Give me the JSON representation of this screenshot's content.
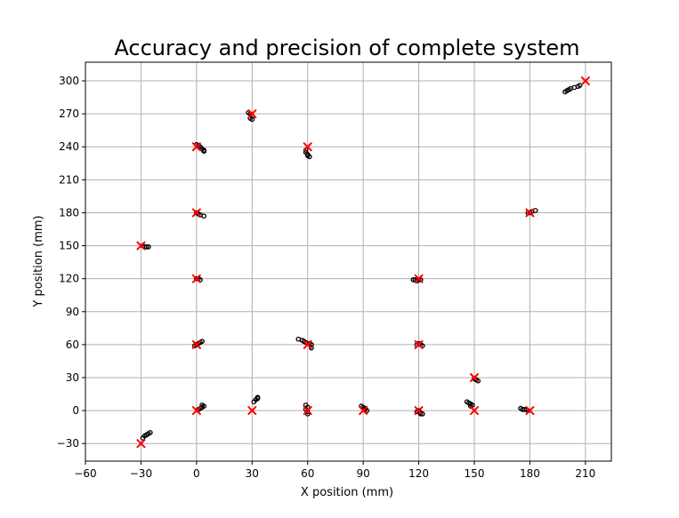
{
  "chart_data": {
    "type": "scatter",
    "title": "Accuracy and precision of complete system",
    "xlabel": "X position (mm)",
    "ylabel": "Y position (mm)",
    "xlim": [
      -60,
      224
    ],
    "ylim": [
      -46,
      317
    ],
    "xticks": [
      -60,
      -30,
      0,
      30,
      60,
      90,
      120,
      150,
      180,
      210
    ],
    "yticks": [
      -30,
      0,
      30,
      60,
      90,
      120,
      150,
      180,
      210,
      240,
      270,
      300
    ],
    "xtick_labels": [
      "−60",
      "−30",
      "0",
      "30",
      "60",
      "90",
      "120",
      "150",
      "180",
      "210"
    ],
    "ytick_labels": [
      "−30",
      "0",
      "30",
      "60",
      "90",
      "120",
      "150",
      "180",
      "210",
      "240",
      "270",
      "300"
    ],
    "grid": true,
    "colors": {
      "target": "#ff0000",
      "measured": "#000000",
      "grid": "#b0b0b0"
    },
    "series": [
      {
        "marker": "x",
        "values": [
          [
            -30,
            -30
          ],
          [
            0,
            0
          ],
          [
            30,
            0
          ],
          [
            60,
            0
          ],
          [
            90,
            0
          ],
          [
            120,
            0
          ],
          [
            150,
            0
          ],
          [
            180,
            0
          ],
          [
            0,
            60
          ],
          [
            60,
            60
          ],
          [
            120,
            60
          ],
          [
            150,
            30
          ],
          [
            0,
            120
          ],
          [
            120,
            120
          ],
          [
            -30,
            150
          ],
          [
            0,
            180
          ],
          [
            180,
            180
          ],
          [
            0,
            240
          ],
          [
            60,
            240
          ],
          [
            30,
            270
          ],
          [
            210,
            300
          ]
        ]
      },
      {
        "marker": "o",
        "values": [
          [
            -29,
            -25
          ],
          [
            -28,
            -23
          ],
          [
            -27,
            -22
          ],
          [
            -26,
            -21
          ],
          [
            -25,
            -20
          ],
          [
            1,
            1
          ],
          [
            2,
            2
          ],
          [
            3,
            3
          ],
          [
            4,
            4
          ],
          [
            3,
            5
          ],
          [
            31,
            8
          ],
          [
            32,
            10
          ],
          [
            33,
            11
          ],
          [
            33,
            12
          ],
          [
            59,
            5
          ],
          [
            60,
            3
          ],
          [
            59,
            1
          ],
          [
            60,
            -1
          ],
          [
            60,
            -3
          ],
          [
            89,
            4
          ],
          [
            90,
            3
          ],
          [
            91,
            2
          ],
          [
            91,
            1
          ],
          [
            92,
            0
          ],
          [
            119,
            -1
          ],
          [
            120,
            0
          ],
          [
            121,
            -2
          ],
          [
            121,
            -3
          ],
          [
            122,
            -3
          ],
          [
            146,
            8
          ],
          [
            147,
            7
          ],
          [
            148,
            6
          ],
          [
            149,
            5
          ],
          [
            148,
            4
          ],
          [
            175,
            2
          ],
          [
            176,
            1
          ],
          [
            177,
            1
          ],
          [
            178,
            1
          ],
          [
            179,
            0
          ],
          [
            -1,
            59
          ],
          [
            0,
            60
          ],
          [
            1,
            61
          ],
          [
            2,
            62
          ],
          [
            3,
            63
          ],
          [
            55,
            65
          ],
          [
            57,
            64
          ],
          [
            58,
            63
          ],
          [
            59,
            62
          ],
          [
            61,
            61
          ],
          [
            62,
            60
          ],
          [
            62,
            57
          ],
          [
            119,
            60
          ],
          [
            120,
            61
          ],
          [
            121,
            60
          ],
          [
            122,
            59
          ],
          [
            150,
            29
          ],
          [
            151,
            28
          ],
          [
            152,
            27
          ],
          [
            0,
            120
          ],
          [
            1,
            120
          ],
          [
            2,
            119
          ],
          [
            117,
            119
          ],
          [
            118,
            119
          ],
          [
            119,
            118
          ],
          [
            120,
            119
          ],
          [
            121,
            119
          ],
          [
            -29,
            150
          ],
          [
            -28,
            149
          ],
          [
            -27,
            149
          ],
          [
            -26,
            149
          ],
          [
            0,
            180
          ],
          [
            1,
            179
          ],
          [
            2,
            178
          ],
          [
            4,
            177
          ],
          [
            179,
            180
          ],
          [
            180,
            180
          ],
          [
            181,
            181
          ],
          [
            183,
            182
          ],
          [
            0,
            242
          ],
          [
            1,
            241
          ],
          [
            2,
            240
          ],
          [
            3,
            238
          ],
          [
            4,
            237
          ],
          [
            4,
            236
          ],
          [
            59,
            237
          ],
          [
            59,
            235
          ],
          [
            60,
            233
          ],
          [
            60,
            232
          ],
          [
            61,
            231
          ],
          [
            28,
            271
          ],
          [
            29,
            270
          ],
          [
            30,
            268
          ],
          [
            29,
            266
          ],
          [
            30,
            265
          ],
          [
            199,
            290
          ],
          [
            200,
            291
          ],
          [
            201,
            292
          ],
          [
            202,
            293
          ],
          [
            204,
            294
          ],
          [
            206,
            295
          ],
          [
            207,
            296
          ]
        ]
      }
    ]
  }
}
